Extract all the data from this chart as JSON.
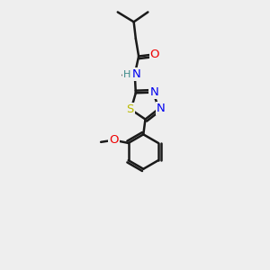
{
  "background_color": "#eeeeee",
  "bond_color": "#1a1a1a",
  "bond_width": 1.8,
  "atom_colors": {
    "C": "#1a1a1a",
    "N": "#0000ee",
    "O": "#ee0000",
    "S": "#bbbb00",
    "H": "#3a8888"
  },
  "font_size": 9.5,
  "xlim": [
    0,
    10
  ],
  "ylim": [
    0,
    13.5
  ]
}
